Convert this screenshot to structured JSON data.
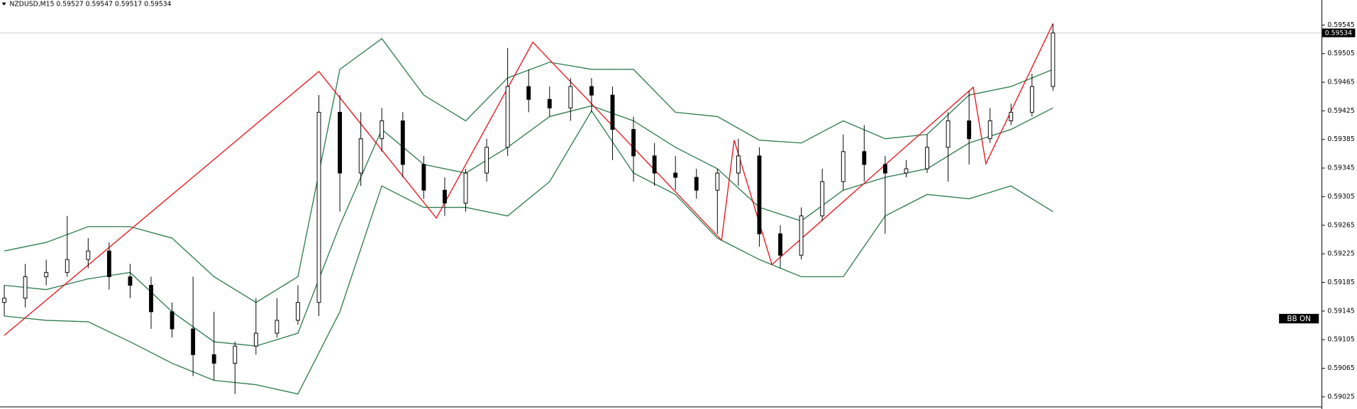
{
  "chart_data": {
    "type": "candlestick",
    "title": "NZDUSD,M15  0.59527 0.59547 0.59517 0.59534",
    "ylim": [
      0.59008,
      0.5958
    ],
    "yticks": [
      0.59545,
      0.59505,
      0.59465,
      0.59425,
      0.59385,
      0.59345,
      0.59305,
      0.59265,
      0.59225,
      0.59185,
      0.59145,
      0.59105,
      0.59065,
      0.59025
    ],
    "xlim": [
      -1,
      314
    ],
    "current_price": 0.59534,
    "indicator_label": "BB ON",
    "colors": {
      "bull": "#ffffff",
      "bear": "#000000",
      "price_line": "#c8c8c8"
    },
    "x": [
      0,
      5,
      10,
      15,
      20,
      25,
      30,
      35,
      40,
      45,
      50,
      55,
      60,
      65,
      70,
      75,
      80,
      85,
      90,
      95,
      100,
      105,
      110,
      115,
      120,
      125,
      130,
      135,
      140,
      145,
      150,
      155,
      160,
      165,
      170,
      175,
      180,
      185,
      190,
      195,
      200,
      205,
      210,
      215,
      220,
      225,
      230,
      235,
      240,
      245,
      250
    ],
    "open": [
      0.59157,
      0.59163,
      0.59193,
      0.59199,
      0.59217,
      0.59229,
      0.59193,
      0.59181,
      0.59144,
      0.5912,
      0.59084,
      0.59072,
      0.59096,
      0.59114,
      0.59132,
      0.59157,
      0.59423,
      0.59338,
      0.59386,
      0.59411,
      0.5935,
      0.59314,
      0.59296,
      0.59338,
      0.59374,
      0.59459,
      0.59441,
      0.59429,
      0.59459,
      0.59447,
      0.59399,
      0.59362,
      0.59338,
      0.59332,
      0.59314,
      0.59338,
      0.59362,
      0.59253,
      0.59223,
      0.59278,
      0.59326,
      0.59368,
      0.5935,
      0.59338,
      0.59344,
      0.59374,
      0.59411,
      0.59386,
      0.59411,
      0.59423,
      0.59459
    ],
    "high": [
      0.59181,
      0.59211,
      0.59217,
      0.59278,
      0.59247,
      0.59241,
      0.59211,
      0.59193,
      0.59157,
      0.59193,
      0.59144,
      0.59102,
      0.59163,
      0.59163,
      0.59181,
      0.59447,
      0.59447,
      0.59423,
      0.59429,
      0.59423,
      0.59362,
      0.59332,
      0.59344,
      0.59386,
      0.59513,
      0.59483,
      0.59459,
      0.59471,
      0.59471,
      0.59459,
      0.59417,
      0.5938,
      0.59362,
      0.59344,
      0.59344,
      0.59386,
      0.59374,
      0.59265,
      0.5929,
      0.59344,
      0.59392,
      0.59405,
      0.59362,
      0.59356,
      0.59392,
      0.59423,
      0.59453,
      0.59429,
      0.59435,
      0.59477,
      0.59547
    ],
    "low": [
      0.59138,
      0.5915,
      0.59181,
      0.59193,
      0.59205,
      0.59175,
      0.59163,
      0.5912,
      0.59108,
      0.59054,
      0.59048,
      0.59029,
      0.59084,
      0.59108,
      0.59126,
      0.59138,
      0.59284,
      0.5932,
      0.59368,
      0.59332,
      0.59302,
      0.59278,
      0.59284,
      0.59326,
      0.59362,
      0.59423,
      0.59417,
      0.59411,
      0.59423,
      0.59356,
      0.59326,
      0.5932,
      0.59314,
      0.59302,
      0.59253,
      0.5932,
      0.59235,
      0.59205,
      0.59217,
      0.59271,
      0.59314,
      0.59326,
      0.59253,
      0.59332,
      0.59338,
      0.59326,
      0.5935,
      0.5938,
      0.59405,
      0.59417,
      0.59453
    ],
    "close": [
      0.59163,
      0.59193,
      0.59199,
      0.59217,
      0.59229,
      0.59193,
      0.59181,
      0.59144,
      0.5912,
      0.59084,
      0.59072,
      0.59096,
      0.59114,
      0.59132,
      0.59157,
      0.59423,
      0.59338,
      0.59386,
      0.59411,
      0.5935,
      0.59314,
      0.59296,
      0.59338,
      0.59374,
      0.59459,
      0.59441,
      0.59429,
      0.59459,
      0.59447,
      0.59399,
      0.59362,
      0.59338,
      0.59332,
      0.59314,
      0.59338,
      0.59362,
      0.59253,
      0.59223,
      0.59278,
      0.59326,
      0.59368,
      0.5935,
      0.59338,
      0.59344,
      0.59374,
      0.59411,
      0.59386,
      0.59411,
      0.59423,
      0.59459,
      0.59534
    ],
    "overlays": [
      {
        "type": "line",
        "color": "#2e7d4f",
        "x": [
          0,
          10,
          20,
          30,
          40,
          50,
          60,
          70,
          80,
          90,
          100,
          110,
          120,
          130,
          140,
          150,
          160,
          170,
          180,
          190,
          200,
          210,
          220,
          230,
          240,
          250
        ],
        "values": [
          0.59229,
          0.59241,
          0.59263,
          0.59263,
          0.59247,
          0.59193,
          0.59157,
          0.59193,
          0.59483,
          0.59526,
          0.59447,
          0.59411,
          0.59471,
          0.59493,
          0.59483,
          0.59483,
          0.59423,
          0.59417,
          0.59384,
          0.5938,
          0.59411,
          0.59386,
          0.59392,
          0.59447,
          0.59459,
          0.59483
        ]
      },
      {
        "type": "line",
        "color": "#2e7d4f",
        "x": [
          0,
          10,
          20,
          30,
          40,
          50,
          60,
          70,
          80,
          90,
          100,
          110,
          120,
          130,
          140,
          150,
          160,
          170,
          180,
          190,
          200,
          210,
          220,
          230,
          240,
          250
        ],
        "values": [
          0.59181,
          0.59175,
          0.5919,
          0.59199,
          0.59144,
          0.59102,
          0.59096,
          0.59114,
          0.59265,
          0.59399,
          0.5935,
          0.59338,
          0.59374,
          0.59417,
          0.59432,
          0.59411,
          0.59374,
          0.59344,
          0.5929,
          0.59271,
          0.59314,
          0.59332,
          0.59344,
          0.5938,
          0.59399,
          0.59429
        ]
      },
      {
        "type": "line",
        "color": "#2e7d4f",
        "x": [
          0,
          10,
          20,
          30,
          40,
          50,
          60,
          70,
          80,
          90,
          100,
          110,
          120,
          130,
          140,
          150,
          160,
          170,
          180,
          190,
          200,
          210,
          220,
          230,
          240,
          250
        ],
        "values": [
          0.59138,
          0.59132,
          0.5913,
          0.59102,
          0.59072,
          0.59048,
          0.59042,
          0.59029,
          0.59144,
          0.5932,
          0.5929,
          0.5929,
          0.59278,
          0.59326,
          0.59425,
          0.59338,
          0.59308,
          0.59247,
          0.59217,
          0.59193,
          0.59193,
          0.59278,
          0.59308,
          0.59302,
          0.5932,
          0.59284
        ]
      },
      {
        "type": "line",
        "color": "#e8141b",
        "x": [
          0,
          75,
          103,
          126,
          171,
          174,
          183,
          231,
          234,
          250
        ],
        "values": [
          0.59111,
          0.5948,
          0.59275,
          0.59521,
          0.59244,
          0.59384,
          0.5921,
          0.59458,
          0.59351,
          0.59547
        ]
      }
    ]
  }
}
